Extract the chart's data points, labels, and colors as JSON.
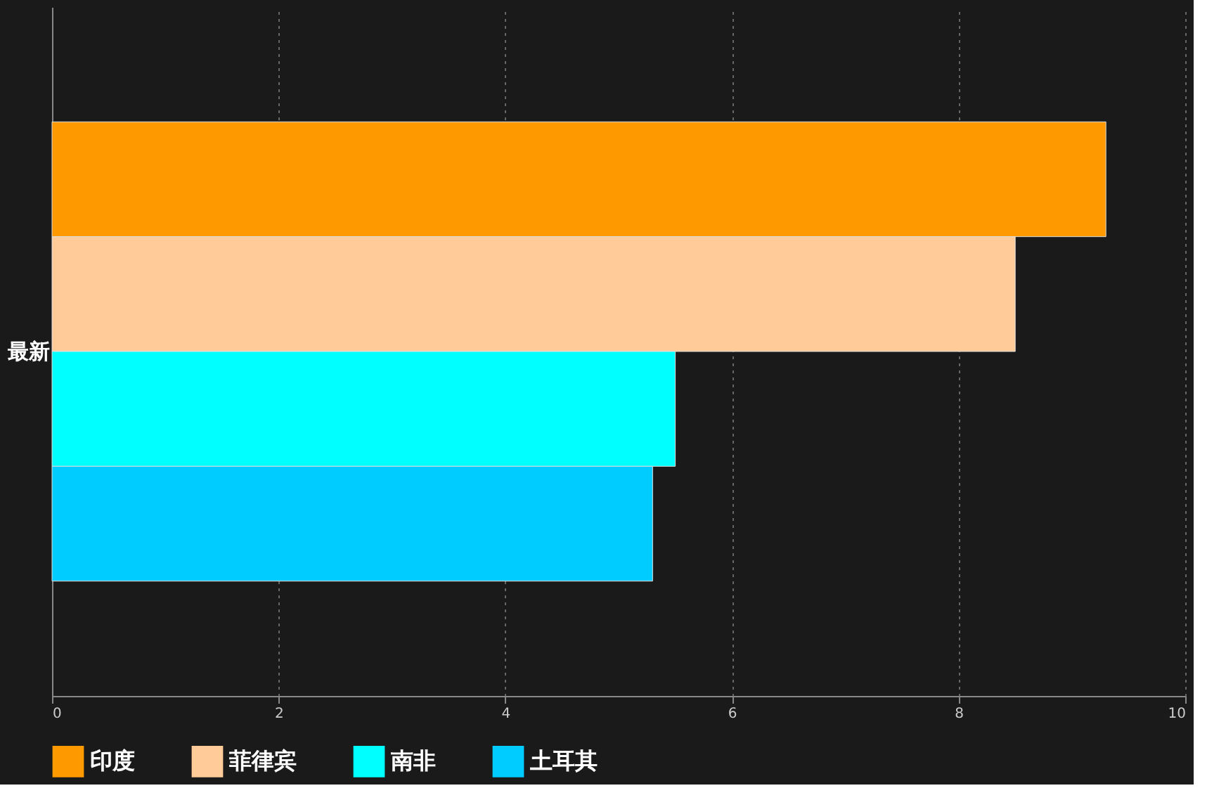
{
  "chart_data": {
    "type": "bar",
    "orientation": "horizontal",
    "categories": [
      "最新"
    ],
    "series": [
      {
        "name": "印度",
        "color": "#ff9900",
        "values": [
          9.3
        ]
      },
      {
        "name": "菲律宾",
        "color": "#ffcc99",
        "values": [
          8.5
        ]
      },
      {
        "name": "南非",
        "color": "#00ffff",
        "values": [
          5.5
        ]
      },
      {
        "name": "土耳其",
        "color": "#00ccff",
        "values": [
          5.3
        ]
      }
    ],
    "xlim": [
      0,
      10
    ],
    "xticks": [
      0,
      2,
      4,
      6,
      8,
      10
    ],
    "grid": "x",
    "legend": "bottom"
  }
}
